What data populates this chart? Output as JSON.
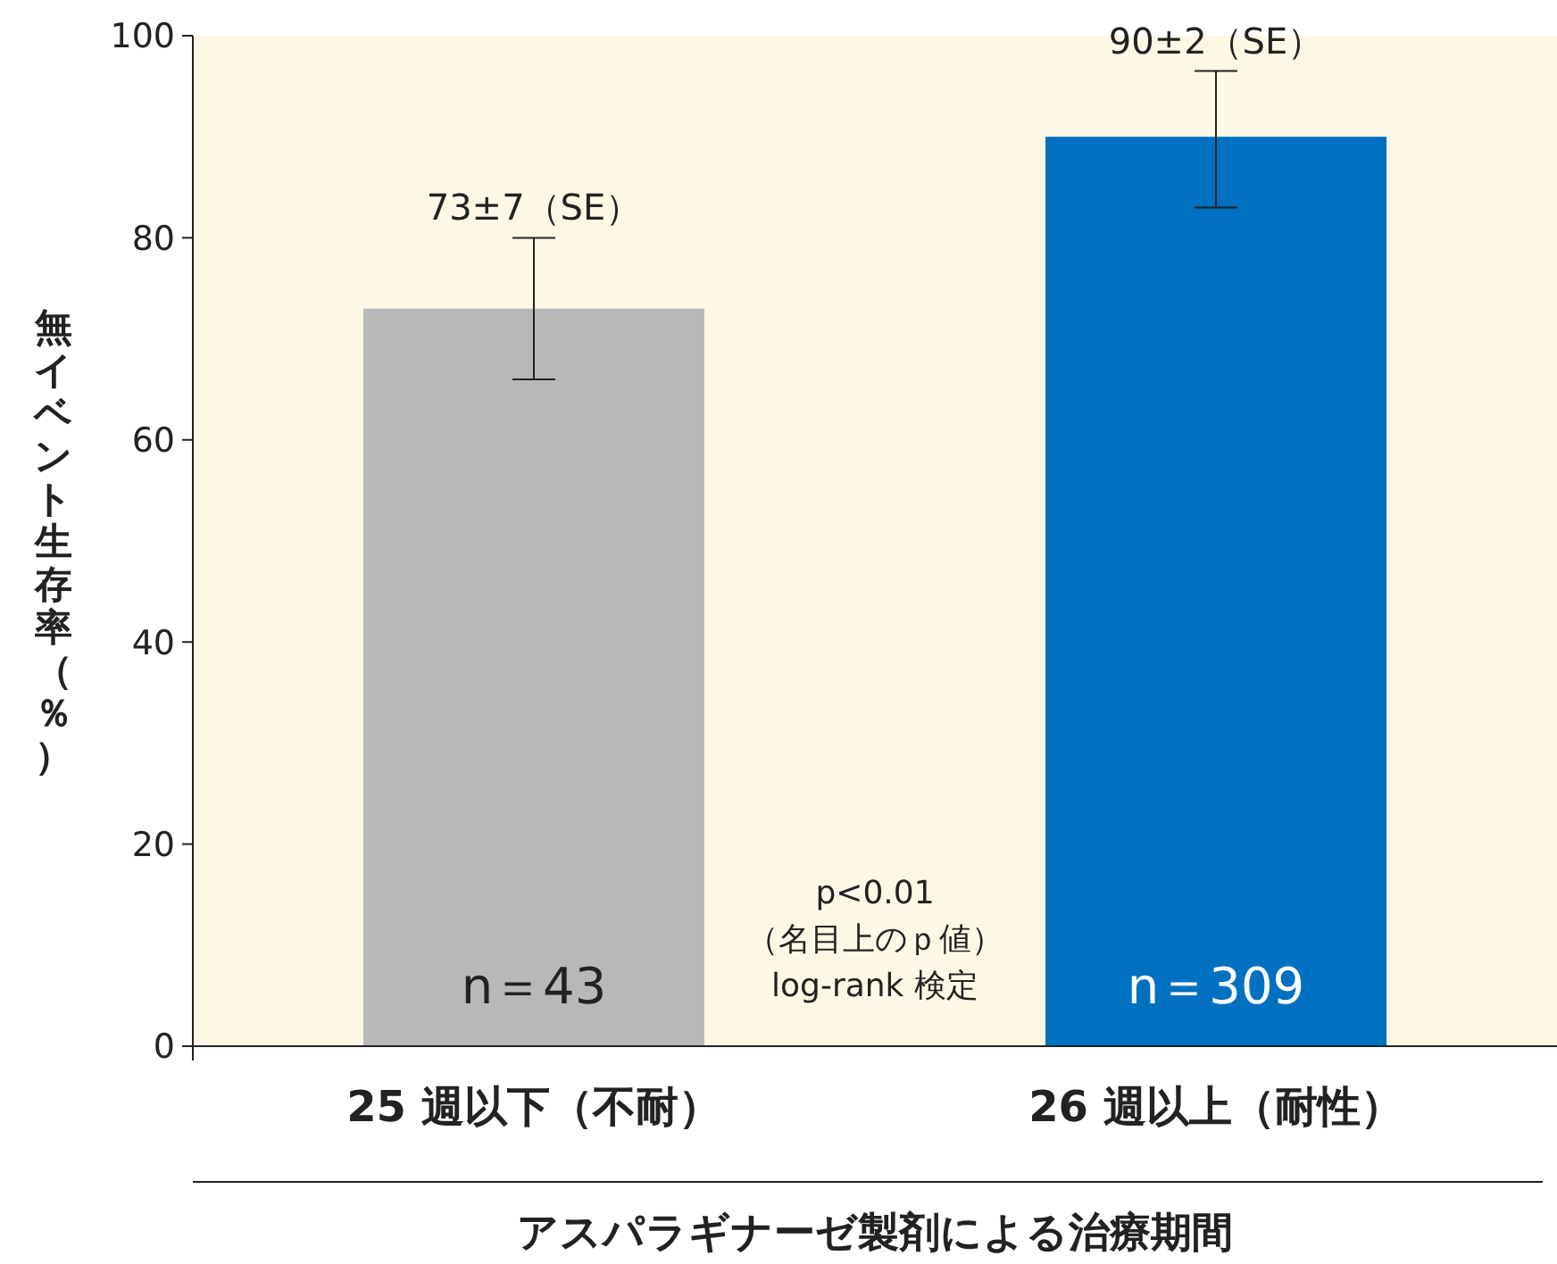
{
  "chart_data": {
    "type": "bar",
    "xlabel": "アスパラギナーゼ製剤による治療期間",
    "ylabel": "無イベント生存率（％）",
    "categories": [
      "25 週以下（不耐）",
      "26 週以上（耐性）"
    ],
    "values": [
      73,
      90
    ],
    "colors": [
      "#b8b8b8",
      "#0070c0"
    ],
    "errors": [
      7,
      [
        83,
        96.5
      ]
    ],
    "value_labels": [
      "73±7（SE）",
      "90±2（SE）"
    ],
    "ylim": [
      0,
      100
    ],
    "yticks": [
      0,
      20,
      40,
      60,
      80,
      100
    ],
    "grid": false,
    "annotations": [
      "n＝43",
      "n＝309",
      "p<0.01\n（名目上のｐ値）\nlog-rank 検定"
    ]
  }
}
